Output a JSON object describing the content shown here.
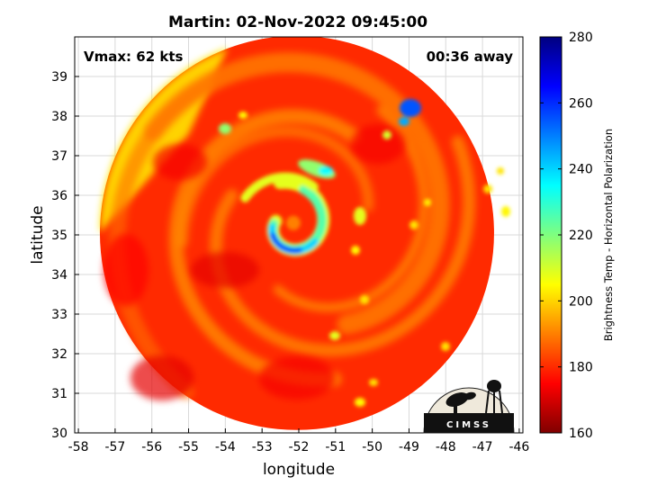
{
  "chart_data": {
    "type": "heatmap",
    "title": "Martin: 02-Nov-2022 09:45:00",
    "xlabel": "longitude",
    "ylabel": "latitude",
    "xlim": [
      -58.1,
      -45.9
    ],
    "ylim": [
      30,
      40
    ],
    "x_ticks": [
      -58,
      -57,
      -56,
      -55,
      -54,
      -53,
      -52,
      -51,
      -50,
      -49,
      -48,
      -47,
      -46
    ],
    "y_ticks": [
      30,
      31,
      32,
      33,
      34,
      35,
      36,
      37,
      38,
      39
    ],
    "grid": true,
    "annotations": {
      "vmax": "Vmax: 62 kts",
      "time_away": "00:36 away"
    },
    "colorbar": {
      "label": "Brightness Temp - Horizontal Polarization",
      "min": 160,
      "max": 280,
      "ticks": [
        160,
        180,
        200,
        220,
        240,
        260,
        280
      ],
      "colormap": "jet"
    },
    "storm_center": {
      "lon": -52.0,
      "lat": 35.3
    },
    "swath_center": {
      "lon": -52.05,
      "lat": 35.05
    },
    "swath_radius_deg_lat": 5.0,
    "logo_text": "CIMSS"
  }
}
